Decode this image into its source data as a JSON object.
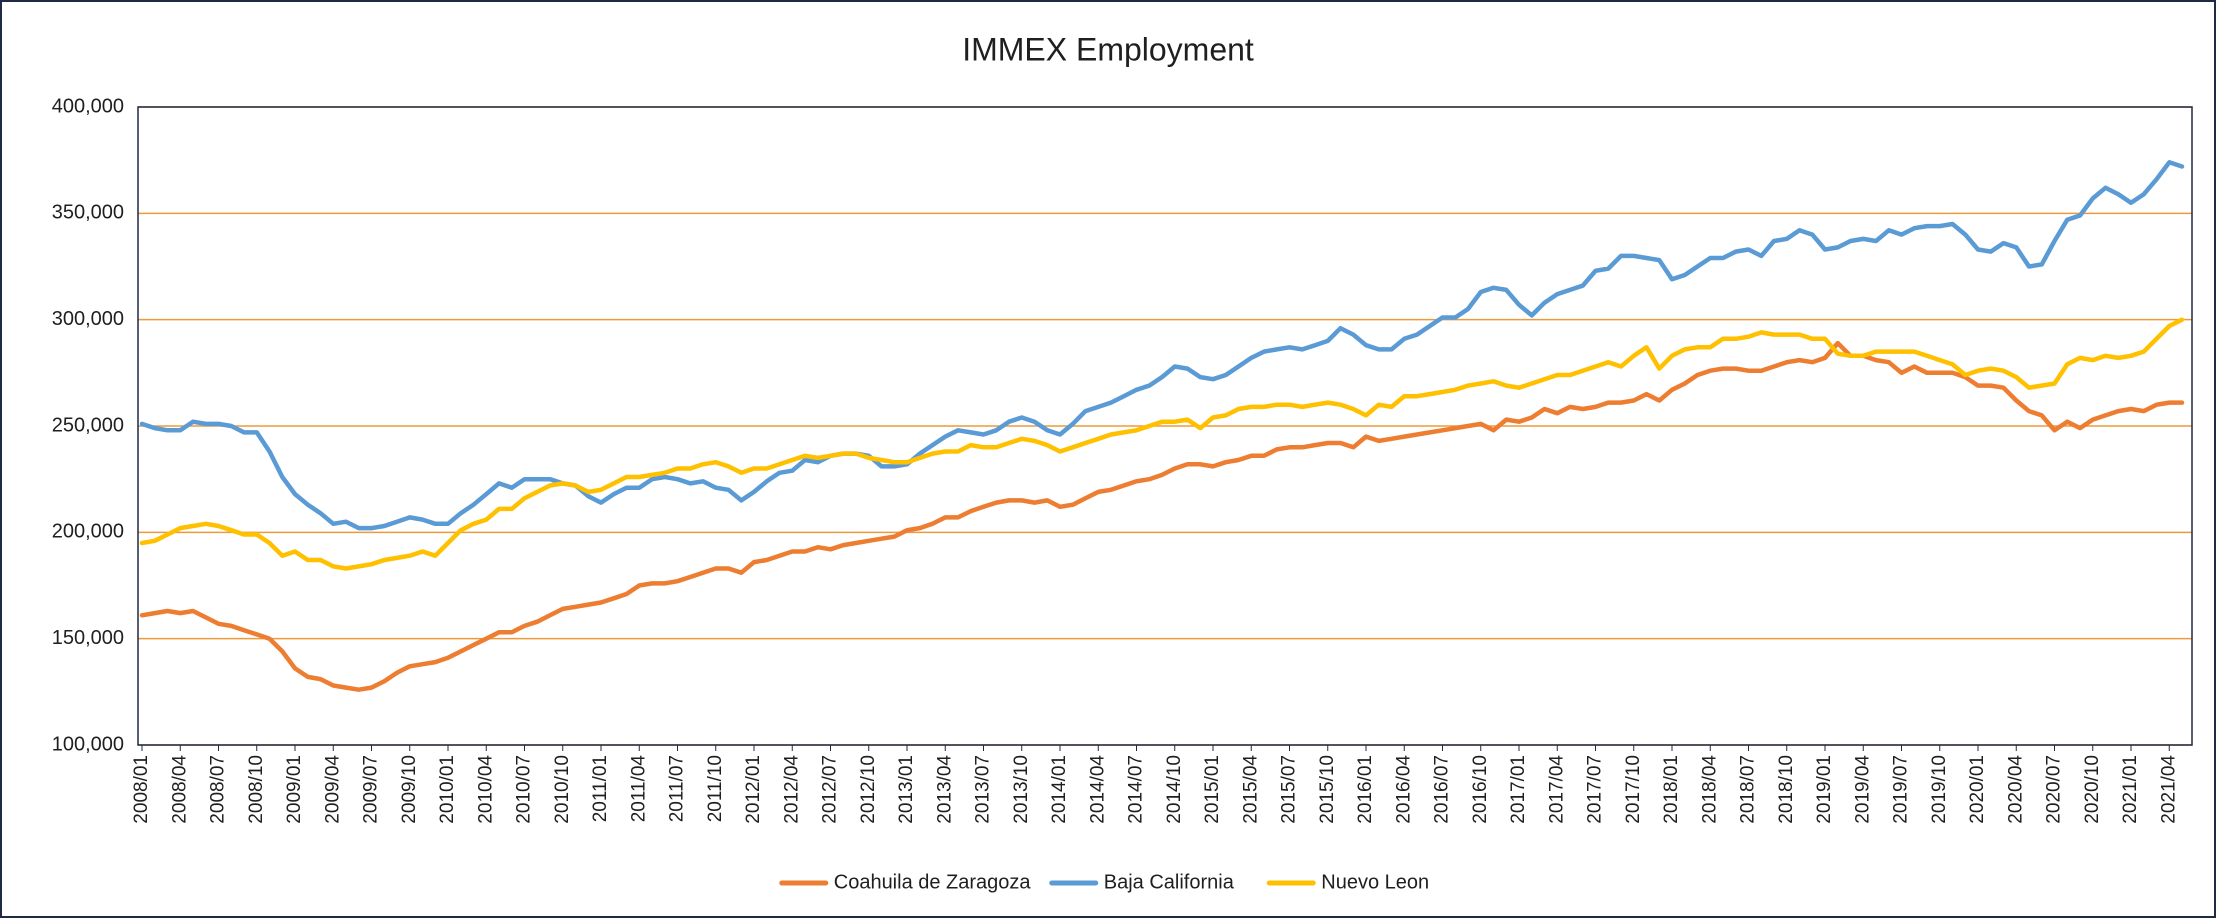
{
  "chart_data": {
    "type": "line",
    "title": "IMMEX Employment",
    "categories": [
      "2008/01",
      null,
      null,
      "2008/04",
      null,
      null,
      "2008/07",
      null,
      null,
      "2008/10",
      null,
      null,
      "2009/01",
      null,
      null,
      "2009/04",
      null,
      null,
      "2009/07",
      null,
      null,
      "2009/10",
      null,
      null,
      "2010/01",
      null,
      null,
      "2010/04",
      null,
      null,
      "2010/07",
      null,
      null,
      "2010/10",
      null,
      null,
      "2011/01",
      null,
      null,
      "2011/04",
      null,
      null,
      "2011/07",
      null,
      null,
      "2011/10",
      null,
      null,
      "2012/01",
      null,
      null,
      "2012/04",
      null,
      null,
      "2012/07",
      null,
      null,
      "2012/10",
      null,
      null,
      "2013/01",
      null,
      null,
      "2013/04",
      null,
      null,
      "2013/07",
      null,
      null,
      "2013/10",
      null,
      null,
      "2014/01",
      null,
      null,
      "2014/04",
      null,
      null,
      "2014/07",
      null,
      null,
      "2014/10",
      null,
      null,
      "2015/01",
      null,
      null,
      "2015/04",
      null,
      null,
      "2015/07",
      null,
      null,
      "2015/10",
      null,
      null,
      "2016/01",
      null,
      null,
      "2016/04",
      null,
      null,
      "2016/07",
      null,
      null,
      "2016/10",
      null,
      null,
      "2017/01",
      null,
      null,
      "2017/04",
      null,
      null,
      "2017/07",
      null,
      null,
      "2017/10",
      null,
      null,
      "2018/01",
      null,
      null,
      "2018/04",
      null,
      null,
      "2018/07",
      null,
      null,
      "2018/10",
      null,
      null,
      "2019/01",
      null,
      null,
      "2019/04",
      null,
      null,
      "2019/07",
      null,
      null,
      "2019/10",
      null,
      null,
      "2020/01",
      null,
      null,
      "2020/04",
      null,
      null,
      "2020/07",
      null,
      null,
      "2020/10",
      null,
      null,
      "2021/01",
      null,
      null,
      "2021/04",
      null
    ],
    "series": [
      {
        "name": "Coahuila de Zaragoza",
        "color": "#ED7D31",
        "values": [
          161000,
          162000,
          163000,
          162000,
          163000,
          160000,
          157000,
          156000,
          154000,
          152000,
          150000,
          144000,
          136000,
          132000,
          131000,
          128000,
          127000,
          126000,
          127000,
          130000,
          134000,
          137000,
          138000,
          139000,
          141000,
          144000,
          147000,
          150000,
          153000,
          153000,
          156000,
          158000,
          161000,
          164000,
          165000,
          166000,
          167000,
          169000,
          171000,
          175000,
          176000,
          176000,
          177000,
          179000,
          181000,
          183000,
          183000,
          181000,
          186000,
          187000,
          189000,
          191000,
          191000,
          193000,
          192000,
          194000,
          195000,
          196000,
          197000,
          198000,
          201000,
          202000,
          204000,
          207000,
          207000,
          210000,
          212000,
          214000,
          215000,
          215000,
          214000,
          215000,
          212000,
          213000,
          216000,
          219000,
          220000,
          222000,
          224000,
          225000,
          227000,
          230000,
          232000,
          232000,
          231000,
          233000,
          234000,
          236000,
          236000,
          239000,
          240000,
          240000,
          241000,
          242000,
          242000,
          240000,
          245000,
          243000,
          244000,
          245000,
          246000,
          247000,
          248000,
          249000,
          250000,
          251000,
          248000,
          253000,
          252000,
          254000,
          258000,
          256000,
          259000,
          258000,
          259000,
          261000,
          261000,
          262000,
          265000,
          262000,
          267000,
          270000,
          274000,
          276000,
          277000,
          277000,
          276000,
          276000,
          278000,
          280000,
          281000,
          280000,
          282000,
          289000,
          283000,
          283000,
          281000,
          280000,
          275000,
          278000,
          275000,
          275000,
          275000,
          273000,
          269000,
          269000,
          268000,
          262000,
          257000,
          255000,
          248000,
          252000,
          249000,
          253000,
          255000,
          257000,
          258000,
          257000,
          260000,
          261000,
          261000
        ]
      },
      {
        "name": "Baja California",
        "color": "#5B9BD5",
        "values": [
          251000,
          249000,
          248000,
          248000,
          252000,
          251000,
          251000,
          250000,
          247000,
          247000,
          238000,
          226000,
          218000,
          213000,
          209000,
          204000,
          205000,
          202000,
          202000,
          203000,
          205000,
          207000,
          206000,
          204000,
          204000,
          209000,
          213000,
          218000,
          223000,
          221000,
          225000,
          225000,
          225000,
          223000,
          222000,
          217000,
          214000,
          218000,
          221000,
          221000,
          225000,
          226000,
          225000,
          223000,
          224000,
          221000,
          220000,
          215000,
          219000,
          224000,
          228000,
          229000,
          234000,
          233000,
          236000,
          237000,
          237000,
          236000,
          231000,
          231000,
          232000,
          237000,
          241000,
          245000,
          248000,
          247000,
          246000,
          248000,
          252000,
          254000,
          252000,
          248000,
          246000,
          251000,
          257000,
          259000,
          261000,
          264000,
          267000,
          269000,
          273000,
          278000,
          277000,
          273000,
          272000,
          274000,
          278000,
          282000,
          285000,
          286000,
          287000,
          286000,
          288000,
          290000,
          296000,
          293000,
          288000,
          286000,
          286000,
          291000,
          293000,
          297000,
          301000,
          301000,
          305000,
          313000,
          315000,
          314000,
          307000,
          302000,
          308000,
          312000,
          314000,
          316000,
          323000,
          324000,
          330000,
          330000,
          329000,
          328000,
          319000,
          321000,
          325000,
          329000,
          329000,
          332000,
          333000,
          330000,
          337000,
          338000,
          342000,
          340000,
          333000,
          334000,
          337000,
          338000,
          337000,
          342000,
          340000,
          343000,
          344000,
          344000,
          345000,
          340000,
          333000,
          332000,
          336000,
          334000,
          325000,
          326000,
          337000,
          347000,
          349000,
          357000,
          362000,
          359000,
          355000,
          359000,
          366000,
          374000,
          372000
        ]
      },
      {
        "name": "Nuevo Leon",
        "color": "#FFC000",
        "values": [
          195000,
          196000,
          199000,
          202000,
          203000,
          204000,
          203000,
          201000,
          199000,
          199000,
          195000,
          189000,
          191000,
          187000,
          187000,
          184000,
          183000,
          184000,
          185000,
          187000,
          188000,
          189000,
          191000,
          189000,
          195000,
          201000,
          204000,
          206000,
          211000,
          211000,
          216000,
          219000,
          222000,
          223000,
          222000,
          219000,
          220000,
          223000,
          226000,
          226000,
          227000,
          228000,
          230000,
          230000,
          232000,
          233000,
          231000,
          228000,
          230000,
          230000,
          232000,
          234000,
          236000,
          235000,
          236000,
          237000,
          237000,
          235000,
          234000,
          233000,
          233000,
          235000,
          237000,
          238000,
          238000,
          241000,
          240000,
          240000,
          242000,
          244000,
          243000,
          241000,
          238000,
          240000,
          242000,
          244000,
          246000,
          247000,
          248000,
          250000,
          252000,
          252000,
          253000,
          249000,
          254000,
          255000,
          258000,
          259000,
          259000,
          260000,
          260000,
          259000,
          260000,
          261000,
          260000,
          258000,
          255000,
          260000,
          259000,
          264000,
          264000,
          265000,
          266000,
          267000,
          269000,
          270000,
          271000,
          269000,
          268000,
          270000,
          272000,
          274000,
          274000,
          276000,
          278000,
          280000,
          278000,
          283000,
          287000,
          277000,
          283000,
          286000,
          287000,
          287000,
          291000,
          291000,
          292000,
          294000,
          293000,
          293000,
          293000,
          291000,
          291000,
          284000,
          283000,
          283000,
          285000,
          285000,
          285000,
          285000,
          283000,
          281000,
          279000,
          274000,
          276000,
          277000,
          276000,
          273000,
          268000,
          269000,
          270000,
          279000,
          282000,
          281000,
          283000,
          282000,
          283000,
          285000,
          291000,
          297000,
          300000
        ]
      }
    ],
    "ylim": [
      100000,
      400000
    ],
    "yticks": [
      {
        "value": 100000,
        "label": "100,000"
      },
      {
        "value": 150000,
        "label": "150,000"
      },
      {
        "value": 200000,
        "label": "200,000"
      },
      {
        "value": 250000,
        "label": "250,000"
      },
      {
        "value": 300000,
        "label": "300,000"
      },
      {
        "value": 350000,
        "label": "350,000"
      },
      {
        "value": 400000,
        "label": "400,000"
      }
    ],
    "grid": true,
    "grid_color": "#ED9A3C",
    "legend": "bottom"
  }
}
